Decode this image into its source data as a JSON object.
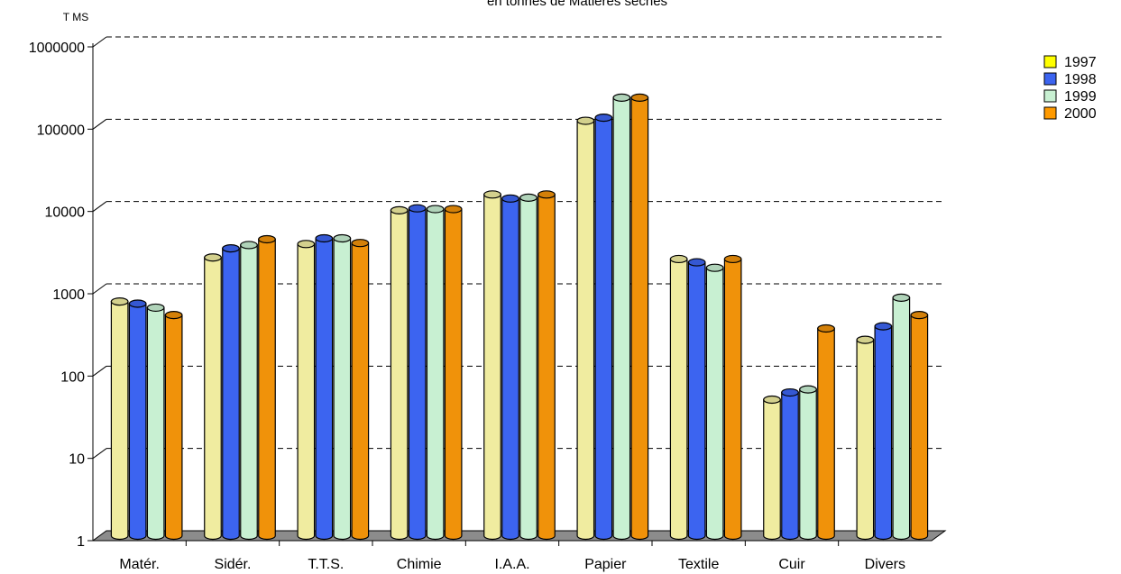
{
  "chart_data": {
    "type": "bar",
    "title": "en tonnes de Matières sèches",
    "ylabel": "T MS",
    "xlabel": "",
    "yscale": "log",
    "ylim": [
      1,
      1000000
    ],
    "yticks": [
      "1",
      "10",
      "100",
      "1000",
      "10000",
      "100000",
      "1000000"
    ],
    "grid": true,
    "legend_position": "top-right",
    "categories": [
      "Matér.",
      "Sidér.",
      "T.T.S.",
      "Chimie",
      "I.A.A.",
      "Papier",
      "Textile",
      "Cuir",
      "Divers"
    ],
    "series": [
      {
        "name": "1997",
        "color": "#ffff00",
        "bar_color": "#f0eca0",
        "values": [
          700,
          2400,
          3500,
          9000,
          14000,
          110000,
          2300,
          45,
          240
        ]
      },
      {
        "name": "1998",
        "color": "#3c64f0",
        "bar_color": "#3c64f0",
        "values": [
          660,
          3100,
          4100,
          9500,
          12500,
          120000,
          2100,
          55,
          350
        ]
      },
      {
        "name": "1999",
        "color": "#c8f0d2",
        "bar_color": "#c8f0d2",
        "values": [
          590,
          3400,
          4100,
          9300,
          12800,
          210000,
          1800,
          60,
          780
        ]
      },
      {
        "name": "2000",
        "color": "#ff9a00",
        "bar_color": "#f0920a",
        "values": [
          480,
          4000,
          3600,
          9300,
          14000,
          210000,
          2300,
          330,
          480
        ]
      }
    ]
  }
}
